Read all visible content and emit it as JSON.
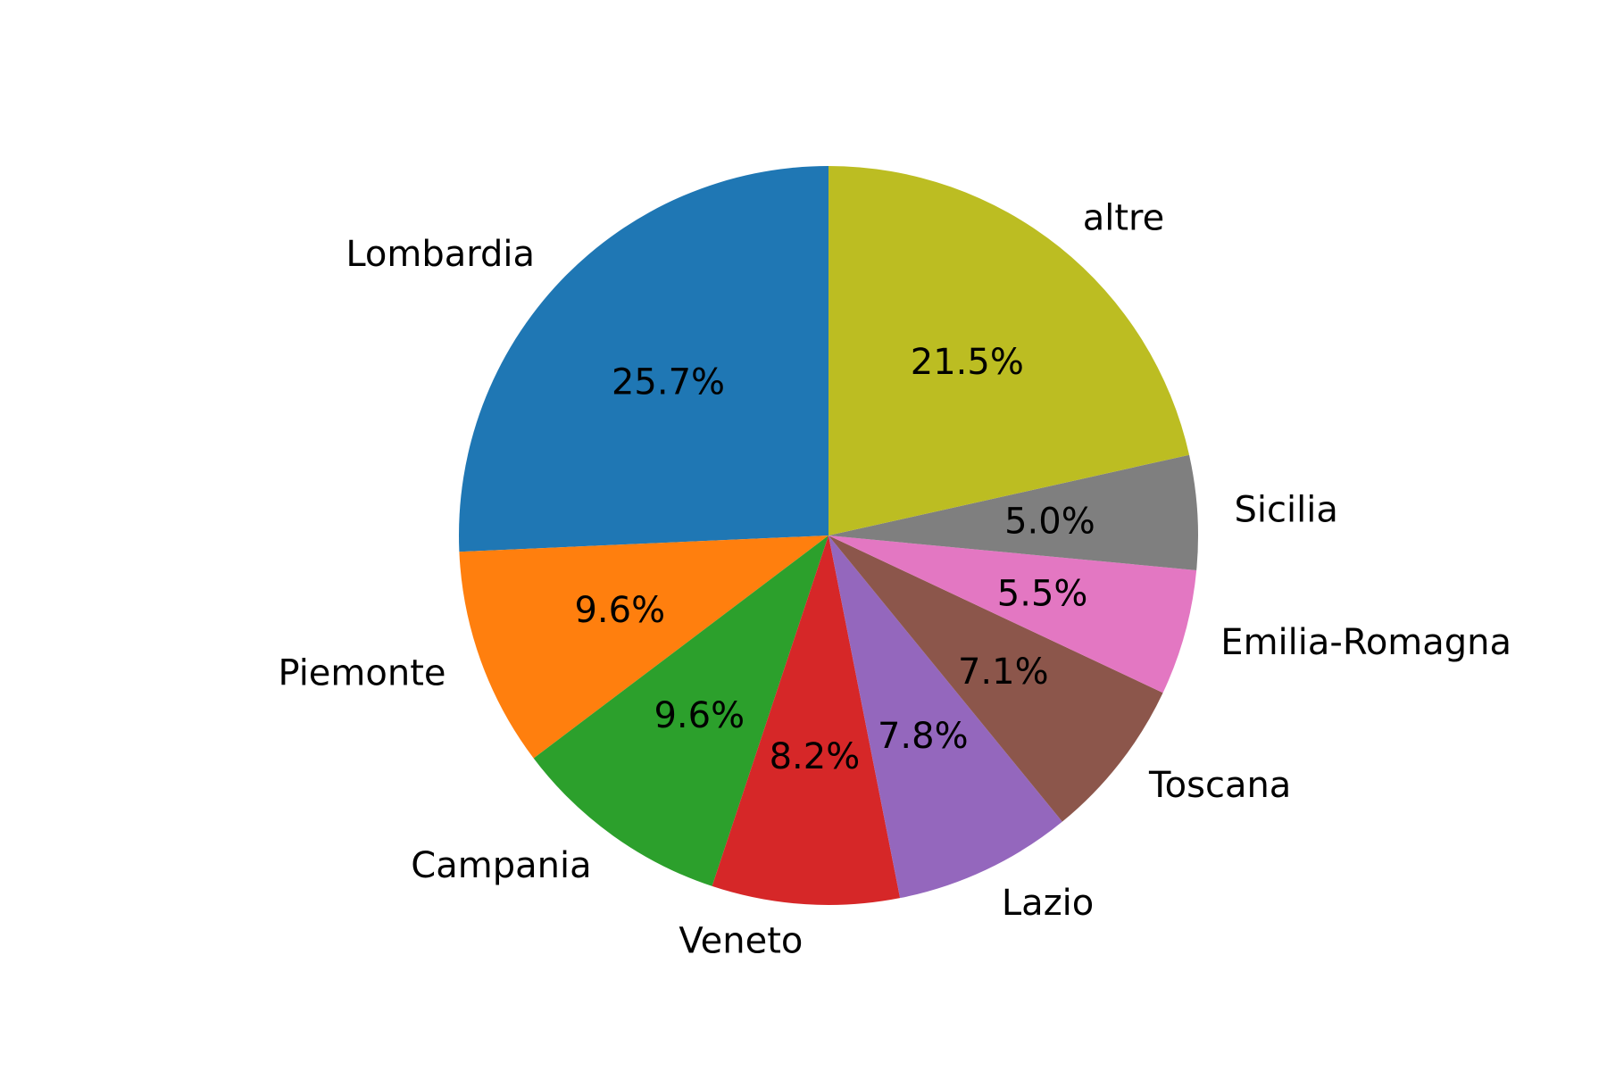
{
  "chart_data": {
    "type": "pie",
    "title": "",
    "start_angle_deg": 90,
    "direction": "counterclockwise",
    "autopct_format": "%1.1f%%",
    "categories": [
      "Lombardia",
      "Piemonte",
      "Campania",
      "Veneto",
      "Lazio",
      "Toscana",
      "Emilia-Romagna",
      "Sicilia",
      "altre"
    ],
    "values": [
      25.7,
      9.6,
      9.6,
      8.2,
      7.8,
      7.1,
      5.5,
      5.0,
      21.5
    ],
    "percent_labels": [
      "25.7%",
      "9.6%",
      "9.6%",
      "8.2%",
      "7.8%",
      "7.1%",
      "5.5%",
      "5.0%",
      "21.5%"
    ],
    "colors": [
      "#1f77b4",
      "#ff7f0e",
      "#2ca02c",
      "#d62728",
      "#9467bd",
      "#8c564b",
      "#e377c2",
      "#7f7f7f",
      "#bcbd22"
    ],
    "legend": "none"
  }
}
